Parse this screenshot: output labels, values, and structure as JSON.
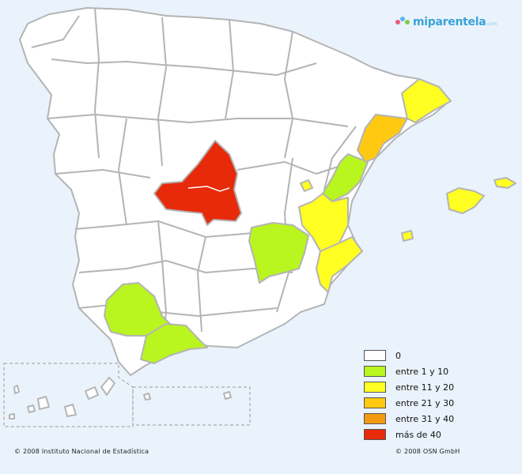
{
  "logo": {
    "text": "miparentela",
    "suffix": ".com"
  },
  "legend": [
    {
      "label": "0",
      "color": "#ffffff"
    },
    {
      "label": "entre 1 y 10",
      "color": "#b9f51f"
    },
    {
      "label": "entre 11 y 20",
      "color": "#ffff22"
    },
    {
      "label": "entre 21 y 30",
      "color": "#ffc912"
    },
    {
      "label": "entre 31 y 40",
      "color": "#f29a12"
    },
    {
      "label": "más de 40",
      "color": "#e62a0a"
    }
  ],
  "footer": {
    "left": "© 2008 Instituto Nacional de Estadística",
    "right": "© 2008 OSN GmbH"
  },
  "colors": {
    "background": "#eaf3fb",
    "province_border": "#b4b4b4",
    "none": "#ffffff",
    "range_1_10": "#b9f51f",
    "range_11_20": "#ffff22",
    "range_21_30": "#ffc912",
    "over_40": "#e62a0a"
  }
}
